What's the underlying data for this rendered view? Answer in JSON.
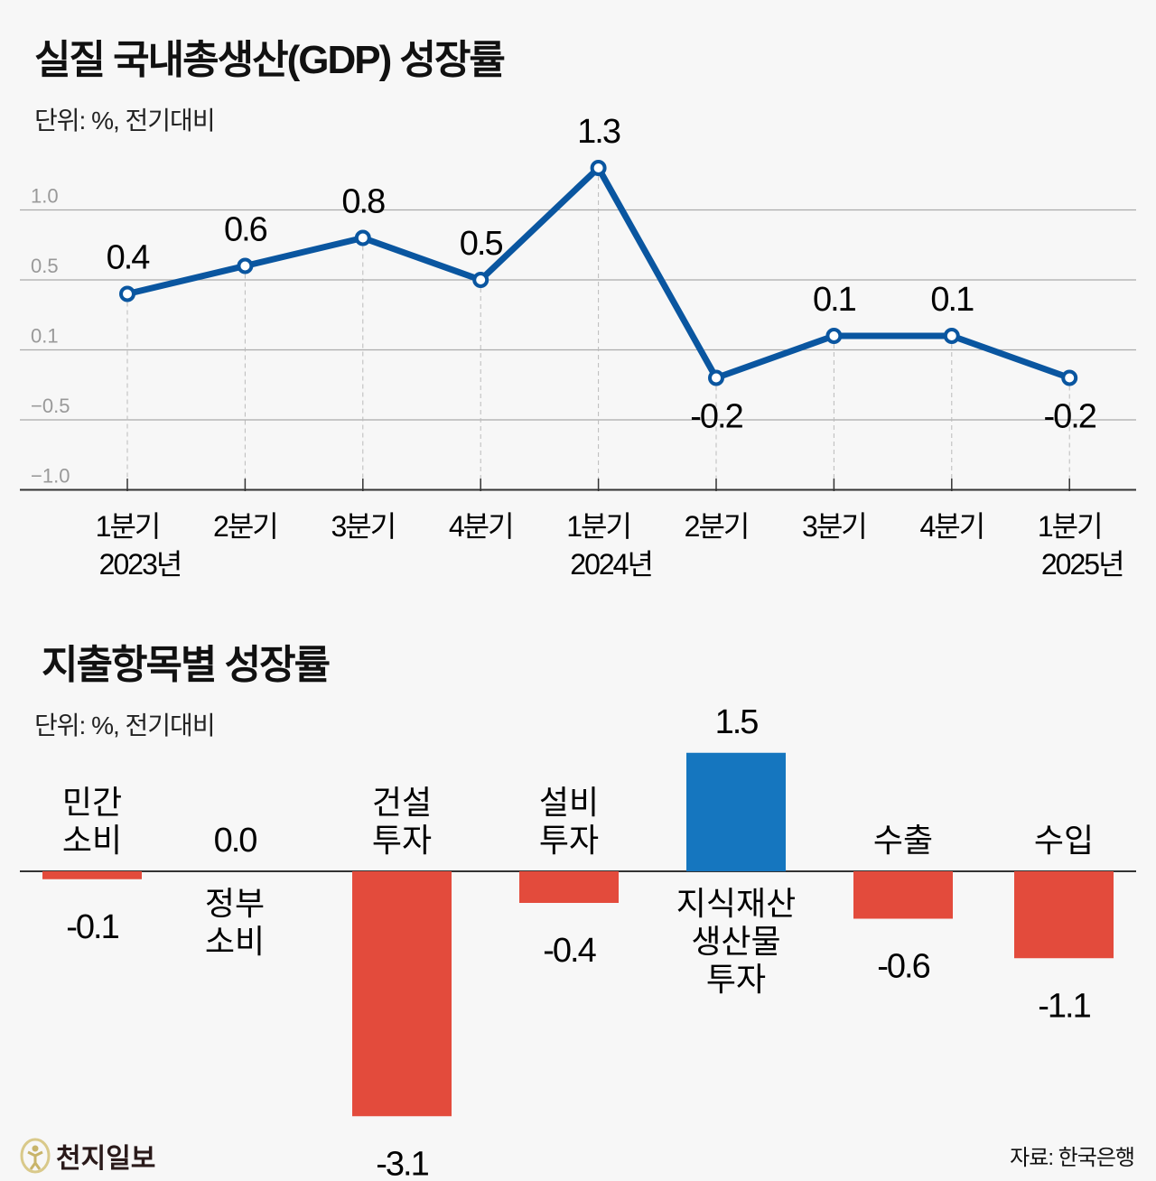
{
  "chart_data": [
    {
      "type": "line",
      "title": "실질 국내총생산(GDP) 성장률",
      "unit": "단위: %, 전기대비",
      "categories": [
        [
          "1분기",
          "2023년"
        ],
        [
          "2분기",
          ""
        ],
        [
          "3분기",
          ""
        ],
        [
          "4분기",
          ""
        ],
        [
          "1분기",
          "2024년"
        ],
        [
          "2분기",
          ""
        ],
        [
          "3분기",
          ""
        ],
        [
          "4분기",
          ""
        ],
        [
          "1분기",
          "2025년"
        ]
      ],
      "values": [
        0.4,
        0.6,
        0.8,
        0.5,
        1.3,
        -0.2,
        0.1,
        0.1,
        -0.2
      ],
      "value_labels": [
        "0.4",
        "0.6",
        "0.8",
        "0.5",
        "1.3",
        "-0.2",
        "0.1",
        "0.1",
        "-0.2"
      ],
      "ytick_labels": [
        "1.0",
        "0.5",
        "0.1",
        "−0.5",
        "−1.0"
      ],
      "ylim": [
        -1.0,
        1.5
      ],
      "grid": true,
      "color": "#0a56a0"
    },
    {
      "type": "bar",
      "title": "지출항목별 성장률",
      "unit": "단위: %, 전기대비",
      "categories": [
        [
          "민간",
          "소비"
        ],
        [
          "정부",
          "소비"
        ],
        [
          "건설",
          "투자"
        ],
        [
          "설비",
          "투자"
        ],
        [
          "지식재산",
          "생산물",
          "투자"
        ],
        [
          "수출"
        ],
        [
          "수입"
        ]
      ],
      "values": [
        -0.1,
        0.0,
        -3.1,
        -0.4,
        1.5,
        -0.6,
        -1.1
      ],
      "value_labels": [
        "-0.1",
        "0.0",
        "-3.1",
        "-0.4",
        "1.5",
        "-0.6",
        "-1.1"
      ],
      "colors": {
        "negative": "#e34b3c",
        "positive": "#1576bf"
      }
    }
  ],
  "footer": {
    "logo_text": "천지일보",
    "source": "자료: 한국은행"
  }
}
